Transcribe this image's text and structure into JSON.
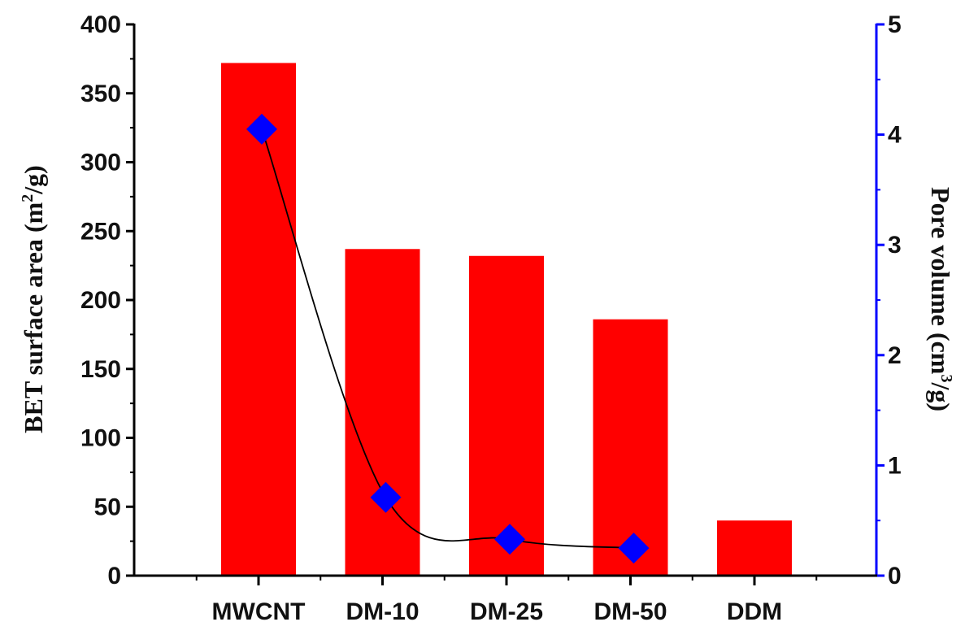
{
  "chart_data": {
    "type": "bar",
    "categories": [
      "MWCNT",
      "DM-10",
      "DM-25",
      "DM-50",
      "DDM"
    ],
    "series": [
      {
        "kind": "bar",
        "axis": "left",
        "values": [
          372,
          237,
          232,
          186,
          40
        ],
        "color": "#ff0000"
      },
      {
        "kind": "line-marker",
        "axis": "right",
        "values": [
          4.05,
          0.71,
          0.33,
          0.25,
          null
        ],
        "color": "#0000ff",
        "marker": "diamond",
        "line_color": "#000000"
      }
    ],
    "ylabel_left": {
      "main": "BET  surface area (m",
      "sup": "2",
      "end": "/g)"
    },
    "ylabel_right": {
      "main": "Pore volume (cm",
      "sup": "3",
      "end": "/g)"
    },
    "ylim_left": [
      0,
      400
    ],
    "yticks_left": [
      "0",
      "50",
      "100",
      "150",
      "200",
      "250",
      "300",
      "350",
      "400"
    ],
    "ylim_right": [
      0,
      5
    ],
    "yticks_right": [
      "0",
      "1",
      "2",
      "3",
      "4",
      "5"
    ],
    "right_axis_color": "#0000ff",
    "grid": false
  }
}
